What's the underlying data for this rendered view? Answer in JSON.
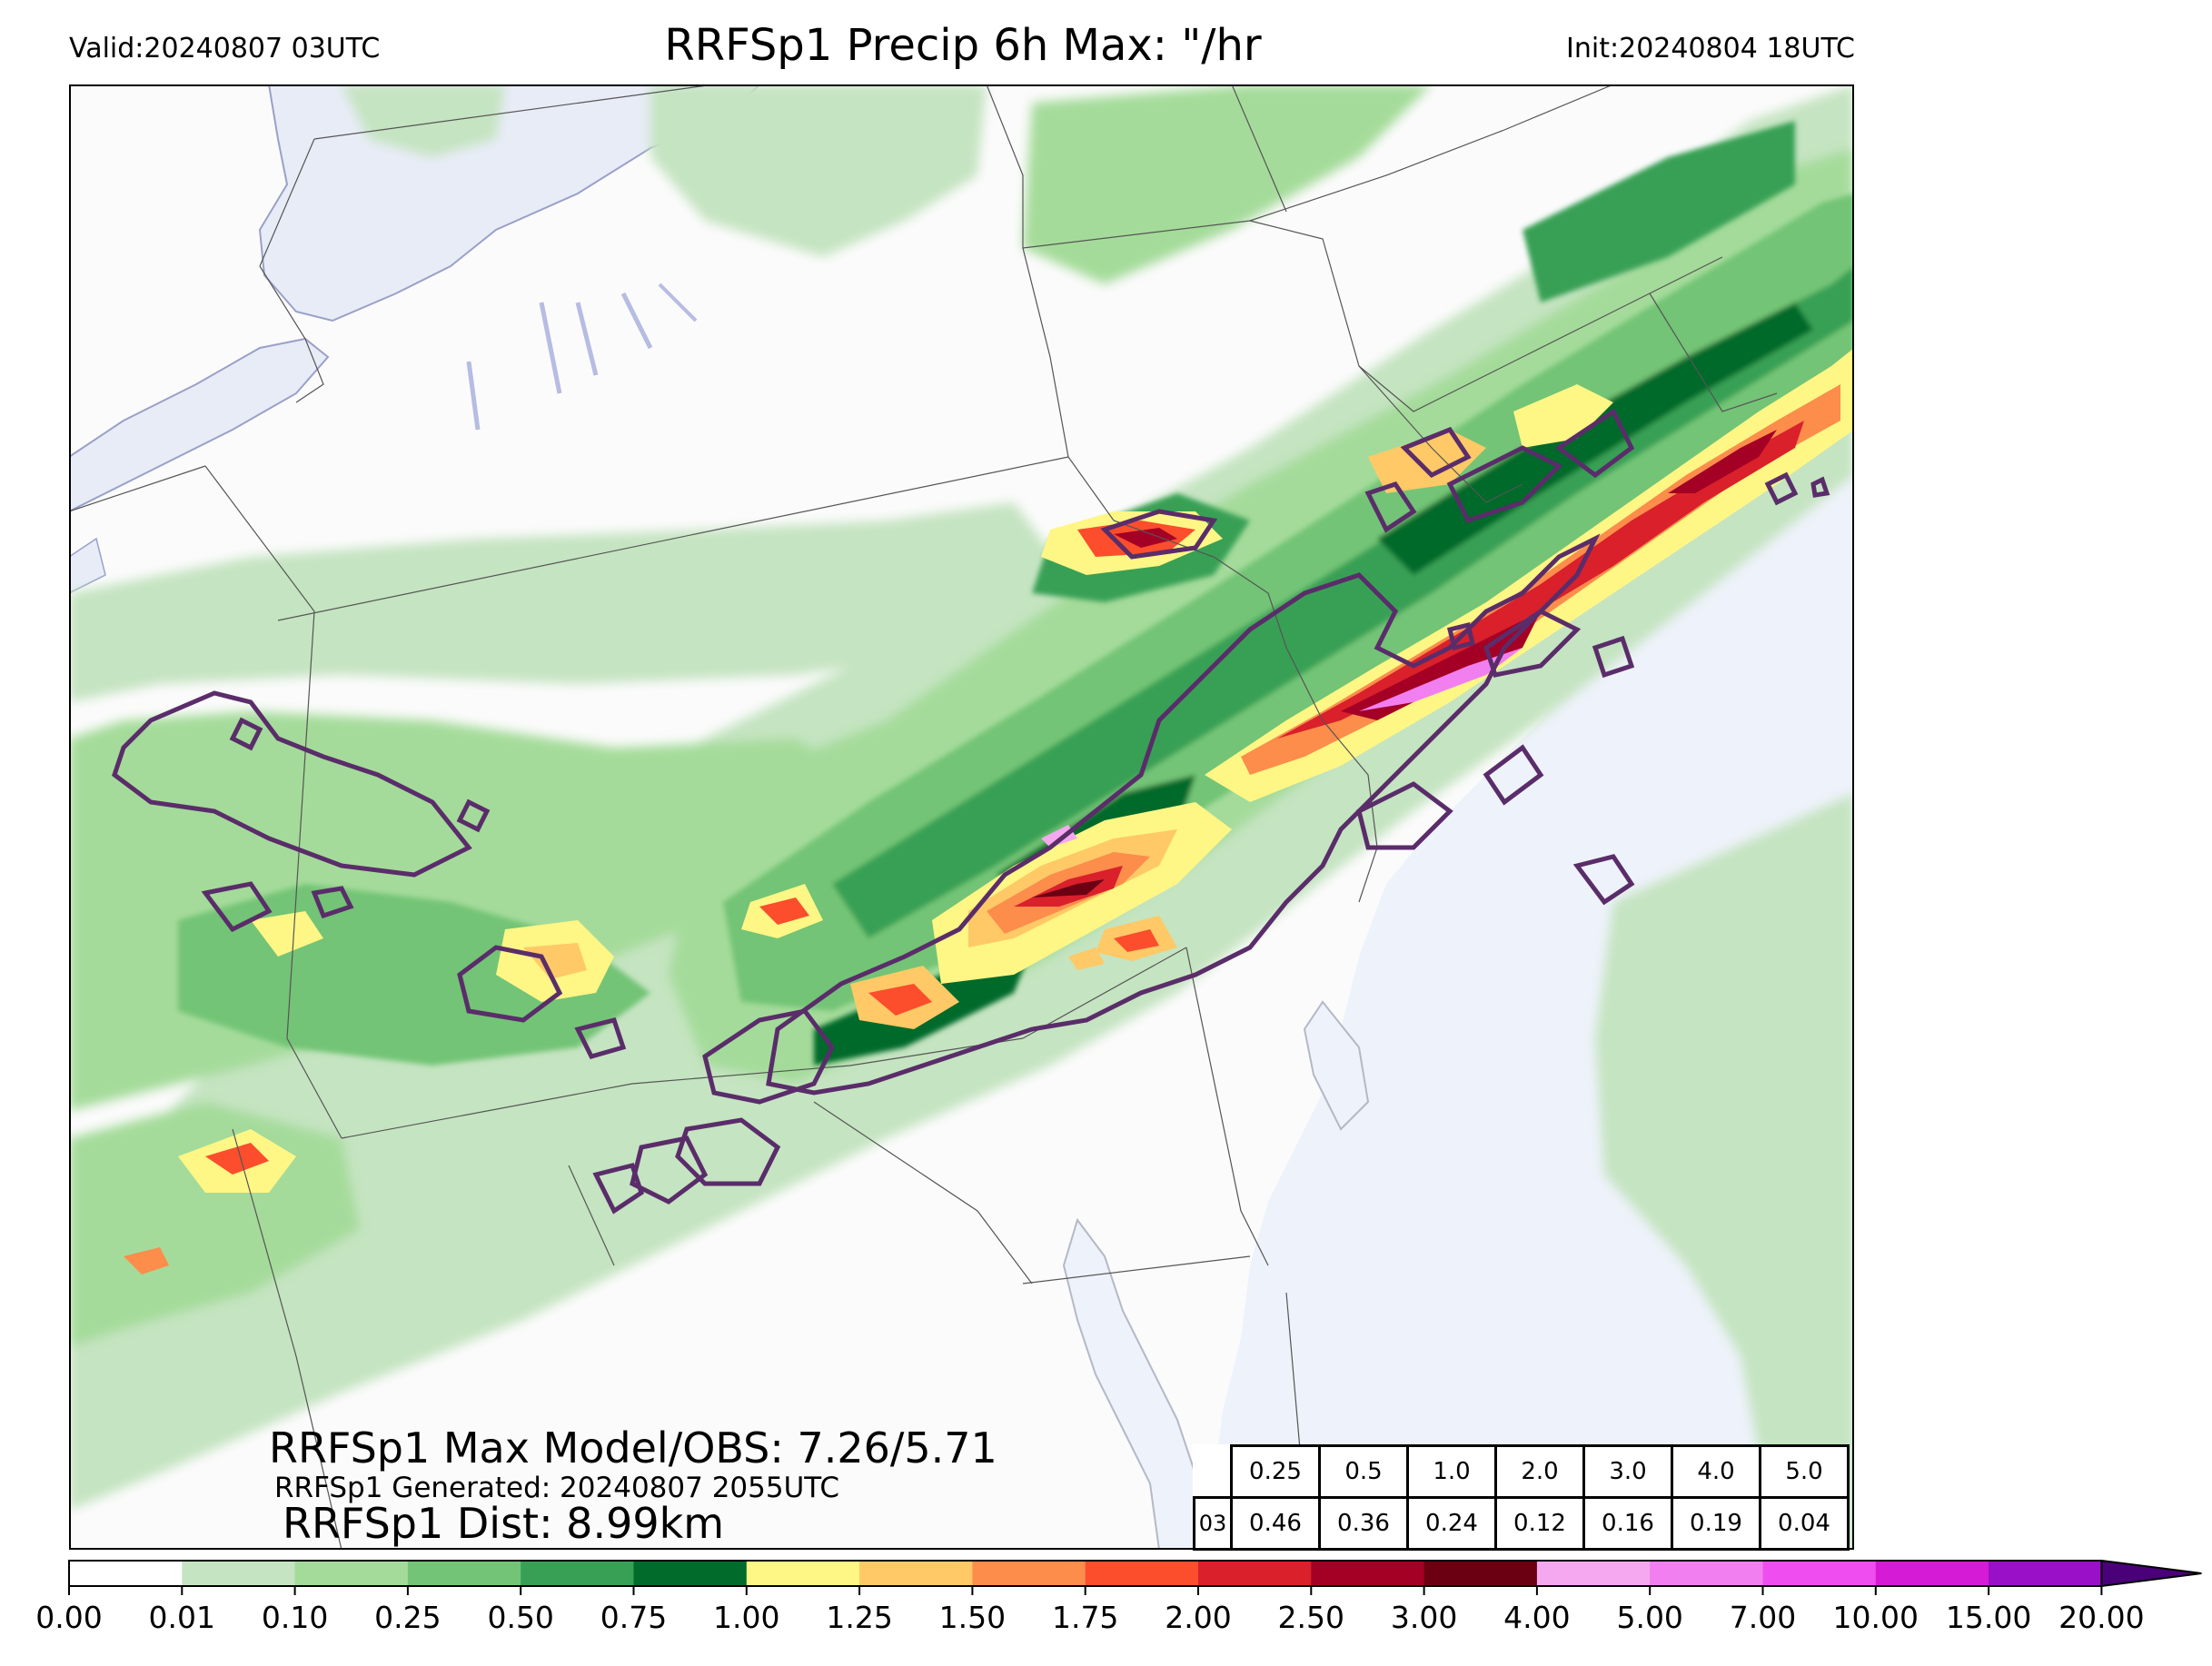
{
  "header": {
    "valid": "Valid:20240807 03UTC",
    "title": "RRFSp1 Precip 6h Max: \"/hr",
    "init": "Init:20240804 18UTC"
  },
  "stats": {
    "max_model_obs": "RRFSp1 Max Model/OBS: 7.26/5.71",
    "generated": "RRFSp1 Generated: 20240807 2055UTC",
    "dist": "RRFSp1 Dist: 8.99km"
  },
  "threshold_table": {
    "row_label": "03",
    "thresholds": [
      "0.25",
      "0.5",
      "1.0",
      "2.0",
      "3.0",
      "4.0",
      "5.0"
    ],
    "scores": [
      "0.46",
      "0.36",
      "0.24",
      "0.12",
      "0.16",
      "0.19",
      "0.04"
    ]
  },
  "colorbar": {
    "ticks": [
      "0.00",
      "0.01",
      "0.10",
      "0.25",
      "0.50",
      "0.75",
      "1.00",
      "1.25",
      "1.50",
      "1.75",
      "2.00",
      "2.50",
      "3.00",
      "4.00",
      "5.00",
      "7.00",
      "10.00",
      "15.00",
      "20.00"
    ],
    "colors": [
      "#ffffff",
      "#c5e4c1",
      "#a4db9a",
      "#73c476",
      "#37a054",
      "#006b2b",
      "#fef685",
      "#fec966",
      "#fc8d4b",
      "#fc4d2c",
      "#d9202b",
      "#a40025",
      "#6b0013",
      "#f5a8f0",
      "#f27ff0",
      "#f04df0",
      "#d51bd6",
      "#9a10c9"
    ],
    "extend_color": "#4a0078"
  },
  "map": {
    "ocean_color": "#eef2fa",
    "land_color": "#fbfbfb",
    "obs_contour_color": "#5a2d6a"
  }
}
